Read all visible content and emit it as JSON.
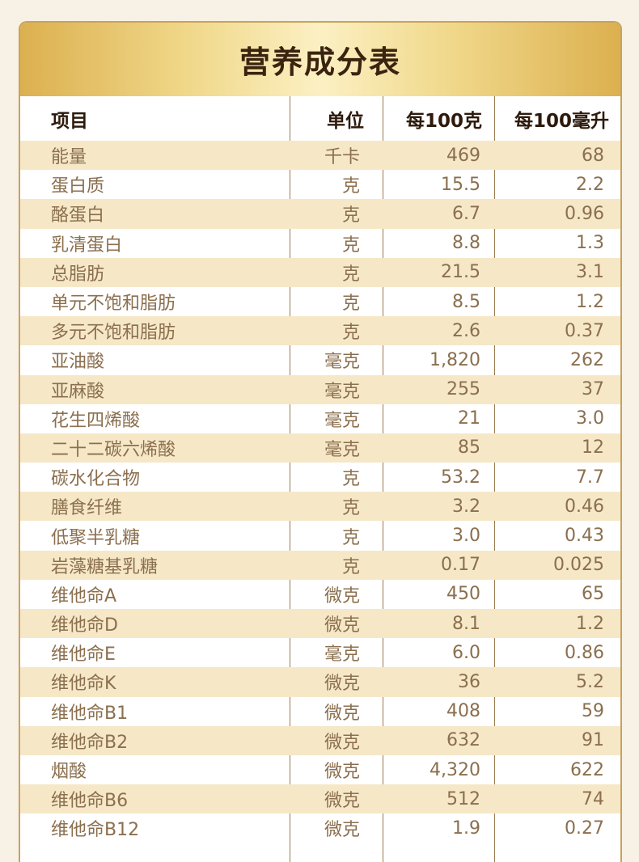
{
  "title": "营养成分表",
  "headers": {
    "name": "项目",
    "unit": "单位",
    "per_100g": "每100克",
    "per_100ml": "每100毫升"
  },
  "rows": [
    {
      "name": "能量",
      "unit": "千卡",
      "per_100g": "469",
      "per_100ml": "68"
    },
    {
      "name": "蛋白质",
      "unit": "克",
      "per_100g": "15.5",
      "per_100ml": "2.2"
    },
    {
      "name": "酪蛋白",
      "unit": "克",
      "per_100g": "6.7",
      "per_100ml": "0.96"
    },
    {
      "name": "乳清蛋白",
      "unit": "克",
      "per_100g": "8.8",
      "per_100ml": "1.3"
    },
    {
      "name": "总脂肪",
      "unit": "克",
      "per_100g": "21.5",
      "per_100ml": "3.1"
    },
    {
      "name": "单元不饱和脂肪",
      "unit": "克",
      "per_100g": "8.5",
      "per_100ml": "1.2"
    },
    {
      "name": "多元不饱和脂肪",
      "unit": "克",
      "per_100g": "2.6",
      "per_100ml": "0.37"
    },
    {
      "name": "亚油酸",
      "unit": "毫克",
      "per_100g": "1,820",
      "per_100ml": "262"
    },
    {
      "name": "亚麻酸",
      "unit": "毫克",
      "per_100g": "255",
      "per_100ml": "37"
    },
    {
      "name": "花生四烯酸",
      "unit": "毫克",
      "per_100g": "21",
      "per_100ml": "3.0"
    },
    {
      "name": "二十二碳六烯酸",
      "unit": "毫克",
      "per_100g": "85",
      "per_100ml": "12"
    },
    {
      "name": "碳水化合物",
      "unit": "克",
      "per_100g": "53.2",
      "per_100ml": "7.7"
    },
    {
      "name": "膳食纤维",
      "unit": "克",
      "per_100g": "3.2",
      "per_100ml": "0.46"
    },
    {
      "name": "低聚半乳糖",
      "unit": "克",
      "per_100g": "3.0",
      "per_100ml": "0.43"
    },
    {
      "name": "岩藻糖基乳糖",
      "unit": "克",
      "per_100g": "0.17",
      "per_100ml": "0.025"
    },
    {
      "name": "维他命A",
      "unit": "微克",
      "per_100g": "450",
      "per_100ml": "65"
    },
    {
      "name": "维他命D",
      "unit": "微克",
      "per_100g": "8.1",
      "per_100ml": "1.2"
    },
    {
      "name": "维他命E",
      "unit": "毫克",
      "per_100g": "6.0",
      "per_100ml": "0.86"
    },
    {
      "name": "维他命K",
      "unit": "微克",
      "per_100g": "36",
      "per_100ml": "5.2"
    },
    {
      "name": "维他命B1",
      "unit": "微克",
      "per_100g": "408",
      "per_100ml": "59"
    },
    {
      "name": "维他命B2",
      "unit": "微克",
      "per_100g": "632",
      "per_100ml": "91"
    },
    {
      "name": "烟酸",
      "unit": "微克",
      "per_100g": "4,320",
      "per_100ml": "622"
    },
    {
      "name": "维他命B6",
      "unit": "微克",
      "per_100g": "512",
      "per_100ml": "74"
    },
    {
      "name": "维他命B12",
      "unit": "微克",
      "per_100g": "1.9",
      "per_100ml": "0.27"
    }
  ],
  "colors": {
    "title_text": "#3a230f",
    "header_text": "#2d1a0c",
    "body_text": "#8b6f4e",
    "stripe": "#f6e8c7",
    "border": "#c9a35b",
    "gold": "#dcb04f"
  }
}
